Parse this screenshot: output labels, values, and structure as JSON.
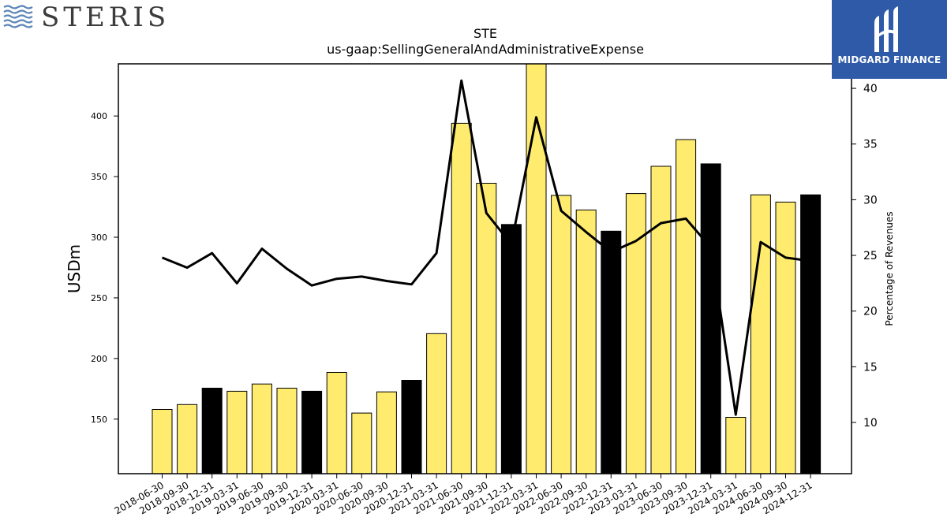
{
  "logos": {
    "left_brand": "STERIS",
    "right_brand": "MIDGARD FINANCE"
  },
  "chart_data": {
    "type": "bar",
    "title": "STE",
    "subtitle": "us-gaap:SellingGeneralAndAdministrativeExpense",
    "ylabel": "USDm",
    "y2label": "Percentage of Revenues",
    "ylim": [
      105,
      443
    ],
    "y2lim": [
      5.4,
      42.2
    ],
    "yticks": [
      150,
      200,
      250,
      300,
      350,
      400
    ],
    "y2ticks": [
      10,
      15,
      20,
      25,
      30,
      35,
      40
    ],
    "categories": [
      "2018-06-30",
      "2018-09-30",
      "2018-12-31",
      "2019-03-31",
      "2019-06-30",
      "2019-09-30",
      "2019-12-31",
      "2020-03-31",
      "2020-06-30",
      "2020-09-30",
      "2020-12-31",
      "2021-03-31",
      "2021-06-30",
      "2021-09-30",
      "2021-12-31",
      "2022-03-31",
      "2022-06-30",
      "2022-09-30",
      "2022-12-31",
      "2023-03-31",
      "2023-06-30",
      "2023-09-30",
      "2023-12-31",
      "2024-03-31",
      "2024-06-30",
      "2024-09-30",
      "2024-12-31"
    ],
    "series": [
      {
        "type": "bar",
        "axis": "left",
        "values": [
          158,
          162,
          175.5,
          173,
          179,
          175.5,
          173,
          188.5,
          155,
          172.5,
          182,
          220.5,
          394,
          344.5,
          310.5,
          443,
          334.5,
          322.5,
          305,
          336,
          358.5,
          380.5,
          360.5,
          151.5,
          335,
          329,
          335
        ],
        "colors": [
          "#ffec6e",
          "#ffec6e",
          "#000000",
          "#ffec6e",
          "#ffec6e",
          "#ffec6e",
          "#000000",
          "#ffec6e",
          "#ffec6e",
          "#ffec6e",
          "#000000",
          "#ffec6e",
          "#ffec6e",
          "#ffec6e",
          "#000000",
          "#ffec6e",
          "#ffec6e",
          "#ffec6e",
          "#000000",
          "#ffec6e",
          "#ffec6e",
          "#ffec6e",
          "#000000",
          "#ffec6e",
          "#ffec6e",
          "#ffec6e",
          "#000000"
        ]
      },
      {
        "type": "line",
        "axis": "right",
        "color": "#000000",
        "values": [
          24.8,
          23.9,
          25.2,
          22.5,
          25.6,
          23.8,
          22.3,
          22.9,
          23.1,
          22.7,
          22.4,
          25.2,
          40.7,
          28.8,
          26.0,
          37.4,
          29.0,
          27.1,
          25.3,
          26.3,
          27.9,
          28.3,
          25.7,
          10.7,
          26.2,
          24.8,
          24.5
        ]
      }
    ],
    "grid": false,
    "legend": "none"
  }
}
